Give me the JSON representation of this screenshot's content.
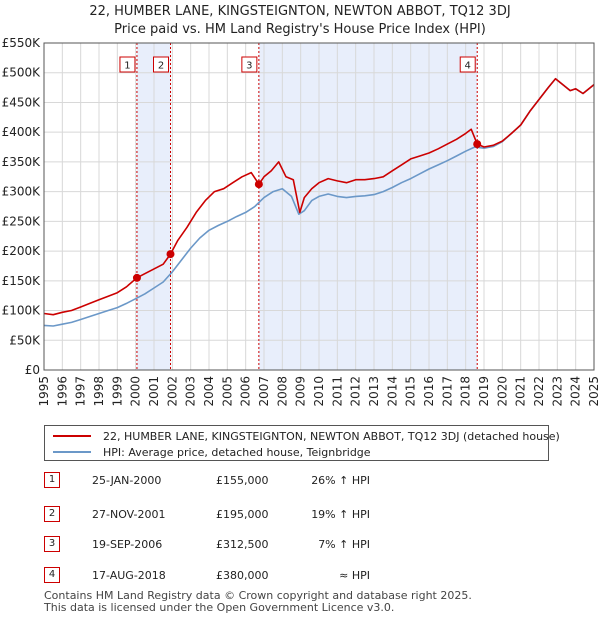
{
  "chart_data": {
    "type": "line",
    "title": "22, HUMBER LANE, KINGSTEIGNTON, NEWTON ABBOT, TQ12 3DJ",
    "subtitle": "Price paid vs. HM Land Registry's House Price Index (HPI)",
    "ylim": [
      0,
      550000
    ],
    "xlim": [
      1995,
      2025
    ],
    "ytick_labels": [
      "£0",
      "£50K",
      "£100K",
      "£150K",
      "£200K",
      "£250K",
      "£300K",
      "£350K",
      "£400K",
      "£450K",
      "£500K",
      "£550K"
    ],
    "ytick_values": [
      0,
      50000,
      100000,
      150000,
      200000,
      250000,
      300000,
      350000,
      400000,
      450000,
      500000,
      550000
    ],
    "xtick_labels": [
      "1995",
      "1996",
      "1997",
      "1998",
      "1999",
      "2000",
      "2001",
      "2002",
      "2003",
      "2004",
      "2005",
      "2006",
      "2007",
      "2008",
      "2009",
      "2010",
      "2011",
      "2012",
      "2013",
      "2014",
      "2015",
      "2016",
      "2017",
      "2018",
      "2019",
      "2020",
      "2021",
      "2022",
      "2023",
      "2024",
      "2025"
    ],
    "grid": true,
    "series": [
      {
        "name": "22, HUMBER LANE, KINGSTEIGNTON, NEWTON ABBOT, TQ12 3DJ (detached house)",
        "color": "#cc0000",
        "x": [
          1995.0,
          1995.5,
          1996.0,
          1996.5,
          1997.0,
          1997.5,
          1998.0,
          1998.5,
          1999.0,
          1999.5,
          2000.07,
          2000.5,
          2001.0,
          2001.5,
          2001.9,
          2002.3,
          2002.8,
          2003.3,
          2003.8,
          2004.3,
          2004.8,
          2005.3,
          2005.8,
          2006.3,
          2006.72,
          2007.0,
          2007.4,
          2007.8,
          2008.2,
          2008.6,
          2008.95,
          2009.2,
          2009.6,
          2010.0,
          2010.5,
          2011.0,
          2011.5,
          2012.0,
          2012.5,
          2013.0,
          2013.5,
          2014.0,
          2014.5,
          2015.0,
          2015.5,
          2016.0,
          2016.5,
          2017.0,
          2017.5,
          2018.0,
          2018.3,
          2018.63,
          2019.0,
          2019.5,
          2020.0,
          2020.5,
          2021.0,
          2021.5,
          2022.0,
          2022.5,
          2022.9,
          2023.3,
          2023.7,
          2024.0,
          2024.4,
          2024.8,
          2025.0
        ],
        "values": [
          95000,
          93000,
          97000,
          100000,
          106000,
          112000,
          118000,
          124000,
          130000,
          140000,
          155000,
          162000,
          170000,
          178000,
          195000,
          218000,
          240000,
          265000,
          285000,
          300000,
          305000,
          315000,
          325000,
          332000,
          312500,
          325000,
          335000,
          350000,
          325000,
          320000,
          265000,
          290000,
          305000,
          315000,
          322000,
          318000,
          315000,
          320000,
          320000,
          322000,
          325000,
          335000,
          345000,
          355000,
          360000,
          365000,
          372000,
          380000,
          388000,
          398000,
          405000,
          380000,
          375000,
          378000,
          385000,
          398000,
          412000,
          435000,
          455000,
          475000,
          490000,
          480000,
          470000,
          473000,
          465000,
          475000,
          480000
        ]
      },
      {
        "name": "HPI: Average price, detached house, Teignbridge",
        "color": "#6b98c8",
        "x": [
          1995.0,
          1995.5,
          1996.0,
          1996.5,
          1997.0,
          1997.5,
          1998.0,
          1998.5,
          1999.0,
          1999.5,
          2000.0,
          2000.5,
          2001.0,
          2001.5,
          2002.0,
          2002.5,
          2003.0,
          2003.5,
          2004.0,
          2004.5,
          2005.0,
          2005.5,
          2006.0,
          2006.5,
          2007.0,
          2007.5,
          2008.0,
          2008.5,
          2008.9,
          2009.2,
          2009.6,
          2010.0,
          2010.5,
          2011.0,
          2011.5,
          2012.0,
          2012.5,
          2013.0,
          2013.5,
          2014.0,
          2014.5,
          2015.0,
          2015.5,
          2016.0,
          2016.5,
          2017.0,
          2017.5,
          2018.0,
          2018.5,
          2019.0,
          2019.5,
          2020.0,
          2020.5,
          2021.0,
          2021.5,
          2022.0,
          2022.5,
          2022.9,
          2023.3,
          2023.7,
          2024.0,
          2024.4,
          2024.8,
          2025.0
        ],
        "values": [
          75000,
          74000,
          77000,
          80000,
          85000,
          90000,
          95000,
          100000,
          105000,
          112000,
          120000,
          128000,
          138000,
          148000,
          165000,
          185000,
          205000,
          222000,
          235000,
          243000,
          250000,
          258000,
          265000,
          275000,
          290000,
          300000,
          305000,
          292000,
          262000,
          268000,
          285000,
          292000,
          296000,
          292000,
          290000,
          292000,
          293000,
          295000,
          300000,
          307000,
          315000,
          322000,
          330000,
          338000,
          345000,
          352000,
          360000,
          368000,
          375000,
          373000,
          376000,
          384000,
          398000,
          412000,
          435000,
          455000,
          475000,
          490000,
          480000,
          470000,
          473000,
          465000,
          475000,
          480000
        ]
      }
    ],
    "sales": [
      {
        "marker": "1",
        "year": 2000.07,
        "price": 155000,
        "date": "25-JAN-2000",
        "price_label": "£155,000",
        "hpi_label": "26% ↑ HPI"
      },
      {
        "marker": "2",
        "year": 2001.9,
        "price": 195000,
        "date": "27-NOV-2001",
        "price_label": "£195,000",
        "hpi_label": "19% ↑ HPI"
      },
      {
        "marker": "3",
        "year": 2006.72,
        "price": 312500,
        "date": "19-SEP-2006",
        "price_label": "£312,500",
        "hpi_label": "7% ↑ HPI"
      },
      {
        "marker": "4",
        "year": 2018.63,
        "price": 380000,
        "date": "17-AUG-2018",
        "price_label": "£380,000",
        "hpi_label": "≈ HPI"
      }
    ],
    "shaded_ranges": [
      [
        2000.07,
        2001.9
      ],
      [
        2006.72,
        2018.63
      ]
    ],
    "colors": {
      "shade": "#e8eefb",
      "grid": "#d8d8d8",
      "axis": "#555555"
    }
  },
  "legend": {
    "property_label": "22, HUMBER LANE, KINGSTEIGNTON, NEWTON ABBOT, TQ12 3DJ (detached house)",
    "hpi_label": "HPI: Average price, detached house, Teignbridge"
  },
  "footer": {
    "line1": "Contains HM Land Registry data © Crown copyright and database right 2025.",
    "line2": "This data is licensed under the Open Government Licence v3.0."
  }
}
